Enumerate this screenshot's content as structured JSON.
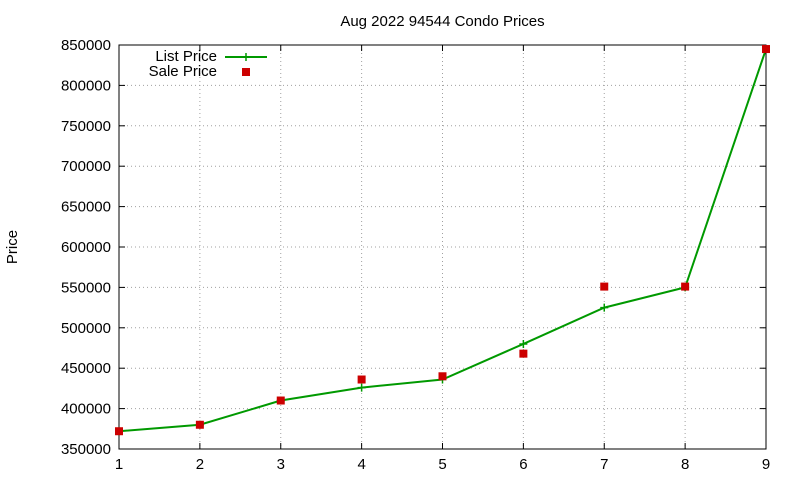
{
  "chart_data": {
    "type": "line",
    "title": "Aug 2022 94544 Condo Prices",
    "xlabel": "",
    "ylabel": "Price",
    "x": [
      1,
      2,
      3,
      4,
      5,
      6,
      7,
      8,
      9
    ],
    "xlim": [
      1,
      9
    ],
    "ylim": [
      350000,
      850000
    ],
    "xticks": [
      "1",
      "2",
      "3",
      "4",
      "5",
      "6",
      "7",
      "8",
      "9"
    ],
    "yticks": [
      "350000",
      "400000",
      "450000",
      "500000",
      "550000",
      "600000",
      "650000",
      "700000",
      "750000",
      "800000",
      "850000"
    ],
    "grid": true,
    "legend_position": "top-left",
    "series": [
      {
        "name": "List Price",
        "style": "line-with-plus-markers",
        "color": "#009900",
        "values": [
          372000,
          380000,
          410000,
          426000,
          436000,
          480000,
          525000,
          550000,
          845000
        ]
      },
      {
        "name": "Sale Price",
        "style": "square-points",
        "color": "#cc0000",
        "values": [
          372000,
          380000,
          410000,
          436000,
          440000,
          468000,
          551000,
          551000,
          845000
        ]
      }
    ]
  }
}
